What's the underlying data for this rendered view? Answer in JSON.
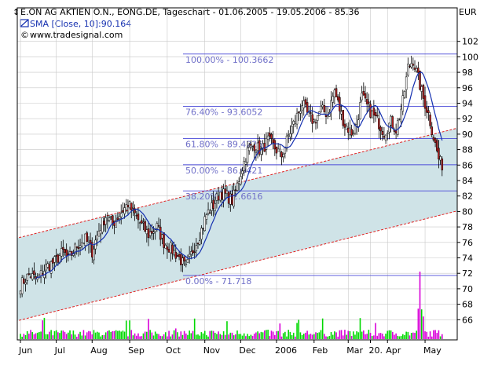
{
  "header": {
    "line1": "E.ON AG AKTIEN O.N., EONG.DE, Tageschart - 01.06.2005 - 19.05.2006 - 85.36",
    "line2": "SMA [Close, 10]:90.164",
    "line3": "www.tradesignal.com",
    "currency": "EUR"
  },
  "colors": {
    "background": "#ffffff",
    "channel_fill": "#cfe3e7",
    "channel_line": "#e02020",
    "fib_line": "#4a4ad8",
    "fib_text": "#6f6fc8",
    "sma": "#1530b0",
    "candle_up": "#ffffff",
    "candle_down": "#b02020",
    "volume_green": "#00d800",
    "volume_magenta": "#d800d8",
    "grid": "#c8c8c8"
  },
  "chart_data": {
    "type": "candlestick",
    "title": "E.ON AG AKTIEN O.N., EONG.DE, Tageschart - 01.06.2005 - 19.05.2006 - 85.36",
    "ylabel": "EUR",
    "ylim": [
      64,
      104
    ],
    "y_ticks": [
      66,
      68,
      70,
      72,
      74,
      76,
      78,
      80,
      82,
      84,
      86,
      88,
      90,
      92,
      94,
      96,
      98,
      100,
      102
    ],
    "x_tick_labels": [
      "Jun",
      "Jul",
      "Aug",
      "Sep",
      "Oct",
      "Nov",
      "Dec",
      "2006",
      "Feb",
      "Mar",
      "20.",
      "Apr",
      "May"
    ],
    "x_tick_days": [
      0,
      21,
      42,
      64,
      86,
      108,
      129,
      150,
      172,
      192,
      205,
      215,
      237
    ],
    "days_total": 254,
    "last_close": 85.36,
    "sma": {
      "name": "SMA [Close, 10]",
      "period": 10,
      "last_value": 90.164
    },
    "fibonacci": [
      {
        "label": "100.00% - 100.3662",
        "value": 100.3662
      },
      {
        "label": "76.40% - 93.6052",
        "value": 93.6052
      },
      {
        "label": "61.80% - 89.4226",
        "value": 89.4226
      },
      {
        "label": "50.00% - 86.0421",
        "value": 86.0421
      },
      {
        "label": "38.20% - 82.6616",
        "value": 82.6616
      },
      {
        "label": "0.00% - 71.718",
        "value": 71.718
      }
    ],
    "channel": {
      "upper": {
        "start_day": -12,
        "start_value": 76.0,
        "end_day": 260,
        "end_value": 91.0
      },
      "lower": {
        "start_day": -12,
        "start_value": 65.3,
        "end_day": 260,
        "end_value": 80.3
      }
    },
    "close_path": [
      [
        0,
        70.5
      ],
      [
        5,
        71.8
      ],
      [
        10,
        71.2
      ],
      [
        15,
        72.8
      ],
      [
        20,
        73.5
      ],
      [
        25,
        74.8
      ],
      [
        28,
        73.8
      ],
      [
        33,
        75.6
      ],
      [
        38,
        76.4
      ],
      [
        42,
        74.8
      ],
      [
        46,
        77.6
      ],
      [
        50,
        79.4
      ],
      [
        54,
        78.4
      ],
      [
        58,
        79.6
      ],
      [
        63,
        81.0
      ],
      [
        67,
        79.6
      ],
      [
        71,
        78.2
      ],
      [
        75,
        77.0
      ],
      [
        80,
        78.0
      ],
      [
        84,
        76.0
      ],
      [
        89,
        75.0
      ],
      [
        93,
        74.0
      ],
      [
        97,
        72.6
      ],
      [
        101,
        75.0
      ],
      [
        105,
        77.0
      ],
      [
        109,
        79.6
      ],
      [
        113,
        80.8
      ],
      [
        117,
        82.5
      ],
      [
        121,
        82.0
      ],
      [
        124,
        81.4
      ],
      [
        126,
        82.6
      ],
      [
        129,
        85.0
      ],
      [
        133,
        87.8
      ],
      [
        137,
        88.6
      ],
      [
        141,
        87.8
      ],
      [
        145,
        89.2
      ],
      [
        149,
        88.2
      ],
      [
        153,
        87.2
      ],
      [
        157,
        89.8
      ],
      [
        161,
        91.8
      ],
      [
        165,
        94.0
      ],
      [
        168,
        92.6
      ],
      [
        172,
        91.6
      ],
      [
        176,
        93.2
      ],
      [
        180,
        92.6
      ],
      [
        184,
        95.6
      ],
      [
        187,
        93.2
      ],
      [
        190,
        91.2
      ],
      [
        194,
        90.2
      ],
      [
        197,
        91.4
      ],
      [
        200,
        94.8
      ],
      [
        203,
        93.6
      ],
      [
        206,
        92.6
      ],
      [
        210,
        91.4
      ],
      [
        213,
        90.2
      ],
      [
        217,
        91.6
      ],
      [
        220,
        90.6
      ],
      [
        224,
        94.2
      ],
      [
        227,
        98.6
      ],
      [
        230,
        99.6
      ],
      [
        233,
        97.2
      ],
      [
        236,
        94.6
      ],
      [
        239,
        92.6
      ],
      [
        242,
        89.6
      ],
      [
        245,
        86.8
      ],
      [
        248,
        85.36
      ]
    ],
    "volume_bars": 248
  }
}
